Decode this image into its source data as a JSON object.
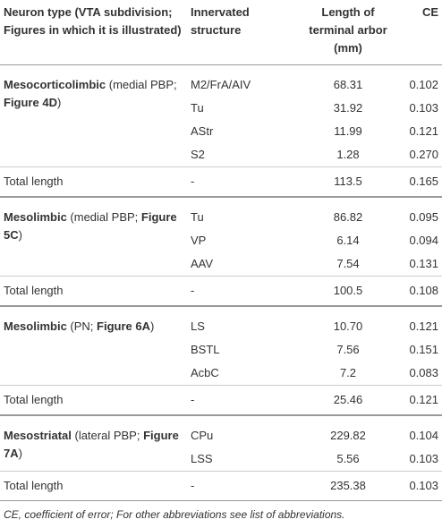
{
  "table": {
    "header": [
      "Neuron type (VTA subdivision; Figures in which it is illustrated)",
      "Innervated structure",
      "Length of terminal arbor (mm)",
      "CE"
    ],
    "groups": [
      {
        "type": [
          {
            "text": "Mesocorticolimbic",
            "b": true
          },
          {
            "text": " (medial PBP; "
          },
          {
            "text": "Figure 4D",
            "b": true
          },
          {
            "text": ")"
          }
        ],
        "rows": [
          [
            "M2/FrA/AIV",
            "68.31",
            "0.102"
          ],
          [
            "Tu",
            "31.92",
            "0.103"
          ],
          [
            "AStr",
            "11.99",
            "0.121"
          ],
          [
            "S2",
            "1.28",
            "0.270"
          ]
        ],
        "total": [
          "Total length",
          "-",
          "113.5",
          "0.165"
        ]
      },
      {
        "type": [
          {
            "text": "Mesolimbic",
            "b": true
          },
          {
            "text": " (medial PBP; "
          },
          {
            "text": "Figure 5C",
            "b": true
          },
          {
            "text": ")"
          }
        ],
        "rows": [
          [
            "Tu",
            "86.82",
            "0.095"
          ],
          [
            "VP",
            "6.14",
            "0.094"
          ],
          [
            "AAV",
            "7.54",
            "0.131"
          ]
        ],
        "total": [
          "Total length",
          "-",
          "100.5",
          "0.108"
        ]
      },
      {
        "type": [
          {
            "text": "Mesolimbic",
            "b": true
          },
          {
            "text": " (PN; "
          },
          {
            "text": "Figure 6A",
            "b": true
          },
          {
            "text": ")"
          }
        ],
        "rows": [
          [
            "LS",
            "10.70",
            "0.121"
          ],
          [
            "BSTL",
            "7.56",
            "0.151"
          ],
          [
            "AcbC",
            "7.2",
            "0.083"
          ]
        ],
        "total": [
          "Total length",
          "-",
          "25.46",
          "0.121"
        ]
      },
      {
        "type": [
          {
            "text": "Mesostriatal",
            "b": true
          },
          {
            "text": " (lateral PBP; "
          },
          {
            "text": "Figure 7A",
            "b": true
          },
          {
            "text": ")"
          }
        ],
        "rows": [
          [
            "CPu",
            "229.82",
            "0.104"
          ],
          [
            "LSS",
            "5.56",
            "0.103"
          ]
        ],
        "total": [
          "Total length",
          "-",
          "235.38",
          "0.103"
        ]
      }
    ]
  },
  "footnote": "CE, coefficient of error; For other abbreviations see list of abbreviations."
}
